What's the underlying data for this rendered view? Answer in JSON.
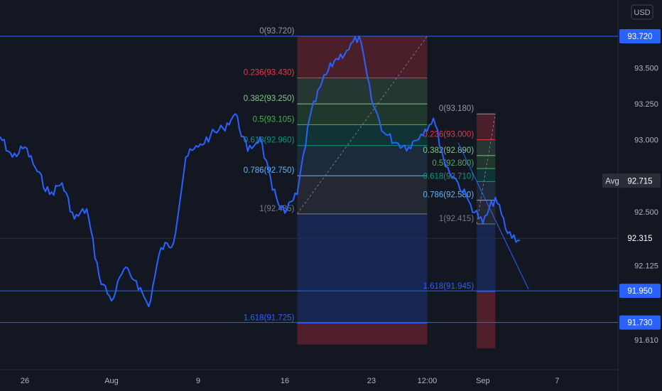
{
  "chart_data": {
    "type": "line",
    "currency": "USD",
    "y_range": [
      91.55,
      93.84
    ],
    "y_ticks": [
      "93.500",
      "93.250",
      "93.000",
      "92.500",
      "92.125",
      "91.610"
    ],
    "x_ticks": [
      {
        "label": "26",
        "x": "Jul 26"
      },
      {
        "label": "Aug",
        "x": "Aug 2"
      },
      {
        "label": "9",
        "x": "Aug 9"
      },
      {
        "label": "16",
        "x": "Aug 16"
      },
      {
        "label": "23",
        "x": "Aug 23"
      },
      {
        "label": "12:00",
        "x": "Aug 27 12:00"
      },
      {
        "label": "Sep",
        "x": "Sep 1"
      },
      {
        "label": "7",
        "x": "Sep 7"
      }
    ],
    "series": [
      {
        "color": "#2962ff",
        "points": [
          [
            "Jul 23",
            92.95
          ],
          [
            "Jul 24",
            93.02
          ],
          [
            "Jul 25",
            92.88
          ],
          [
            "Jul 26",
            92.95
          ],
          [
            "Jul 27",
            92.78
          ],
          [
            "Jul 28",
            92.62
          ],
          [
            "Jul 29",
            92.7
          ],
          [
            "Jul 30",
            92.45
          ],
          [
            "Jul 31",
            92.52
          ],
          [
            "Aug 1",
            92.05
          ],
          [
            "Aug 2",
            91.88
          ],
          [
            "Aug 3",
            92.1
          ],
          [
            "Aug 4",
            92.02
          ],
          [
            "Aug 5",
            91.84
          ],
          [
            "Aug 6",
            92.25
          ],
          [
            "Aug 7",
            92.28
          ],
          [
            "Aug 8",
            92.88
          ],
          [
            "Aug 9",
            92.95
          ],
          [
            "Aug 10",
            93.03
          ],
          [
            "Aug 11",
            93.08
          ],
          [
            "Aug 12",
            93.18
          ],
          [
            "Aug 13",
            92.92
          ],
          [
            "Aug 14",
            93.02
          ],
          [
            "Aug 15",
            92.65
          ],
          [
            "Aug 16",
            92.49
          ],
          [
            "Aug 17",
            92.62
          ],
          [
            "Aug 18",
            93.15
          ],
          [
            "Aug 19",
            93.4
          ],
          [
            "Aug 20",
            93.55
          ],
          [
            "Aug 21",
            93.62
          ],
          [
            "Aug 22",
            93.72
          ],
          [
            "Aug 23",
            93.28
          ],
          [
            "Aug 24",
            93.05
          ],
          [
            "Aug 25",
            92.98
          ],
          [
            "Aug 26",
            92.95
          ],
          [
            "Aug 27",
            93.04
          ],
          [
            "Aug 28",
            93.15
          ],
          [
            "Aug 29",
            92.82
          ],
          [
            "Aug 30",
            92.7
          ],
          [
            "Aug 31",
            92.55
          ],
          [
            "Sep 1",
            92.42
          ],
          [
            "Sep 2",
            92.6
          ],
          [
            "Sep 3",
            92.35
          ],
          [
            "Sep 4",
            92.3
          ]
        ]
      }
    ],
    "price_labels": [
      {
        "value": "93.720",
        "color": "#2962ff"
      },
      {
        "value": "92.715",
        "color": "#2a2e39",
        "prefix": "Avg"
      },
      {
        "value": "92.315",
        "color": "#131722"
      },
      {
        "value": "91.950",
        "color": "#2962ff"
      },
      {
        "value": "91.730",
        "color": "#2962ff"
      }
    ],
    "fib1": {
      "from": "Aug 17",
      "to": "Aug 27 12:00",
      "levels": [
        {
          "ratio": "0",
          "price": "93.720",
          "label": "0(93.720)",
          "color": "#9598a1"
        },
        {
          "ratio": "0.236",
          "price": "93.430",
          "label": "0.236(93.430)",
          "color": "#f23645"
        },
        {
          "ratio": "0.382",
          "price": "93.250",
          "label": "0.382(93.250)",
          "color": "#81c784"
        },
        {
          "ratio": "0.5",
          "price": "93.105",
          "label": "0.5(93.105)",
          "color": "#4caf50"
        },
        {
          "ratio": "0.618",
          "price": "92.960",
          "label": "0.618(92.960)",
          "color": "#089981"
        },
        {
          "ratio": "0.786",
          "price": "92.750",
          "label": "0.786(92.750)",
          "color": "#64b5f6"
        },
        {
          "ratio": "1",
          "price": "92.485",
          "label": "1(92.485)",
          "color": "#787b86"
        },
        {
          "ratio": "1.618",
          "price": "91.725",
          "label": "1.618(91.725)",
          "color": "#2962ff"
        }
      ]
    },
    "fib2": {
      "from": "Aug 31 12:00",
      "to": "Sep 2",
      "levels": [
        {
          "ratio": "0",
          "price": "93.180",
          "label": "0(93.180)",
          "color": "#9598a1"
        },
        {
          "ratio": "0.236",
          "price": "93.000",
          "label": "0.236(93.000)",
          "color": "#f23645"
        },
        {
          "ratio": "0.382",
          "price": "92.890",
          "label": "0.382(92.890)",
          "color": "#81c784"
        },
        {
          "ratio": "0.5",
          "price": "92.800",
          "label": "0.5(92.800)",
          "color": "#4caf50"
        },
        {
          "ratio": "0.618",
          "price": "92.710",
          "label": "0.618(92.710)",
          "color": "#089981"
        },
        {
          "ratio": "0.786",
          "price": "92.580",
          "label": "0.786(92.580)",
          "color": "#64b5f6"
        },
        {
          "ratio": "1",
          "price": "92.415",
          "label": "1(92.415)",
          "color": "#787b86"
        },
        {
          "ratio": "1.618",
          "price": "91.945",
          "label": "1.618(91.945)",
          "color": "#2962ff"
        }
      ]
    },
    "horizontal_lines": [
      "93.720",
      "91.950",
      "91.730"
    ]
  }
}
